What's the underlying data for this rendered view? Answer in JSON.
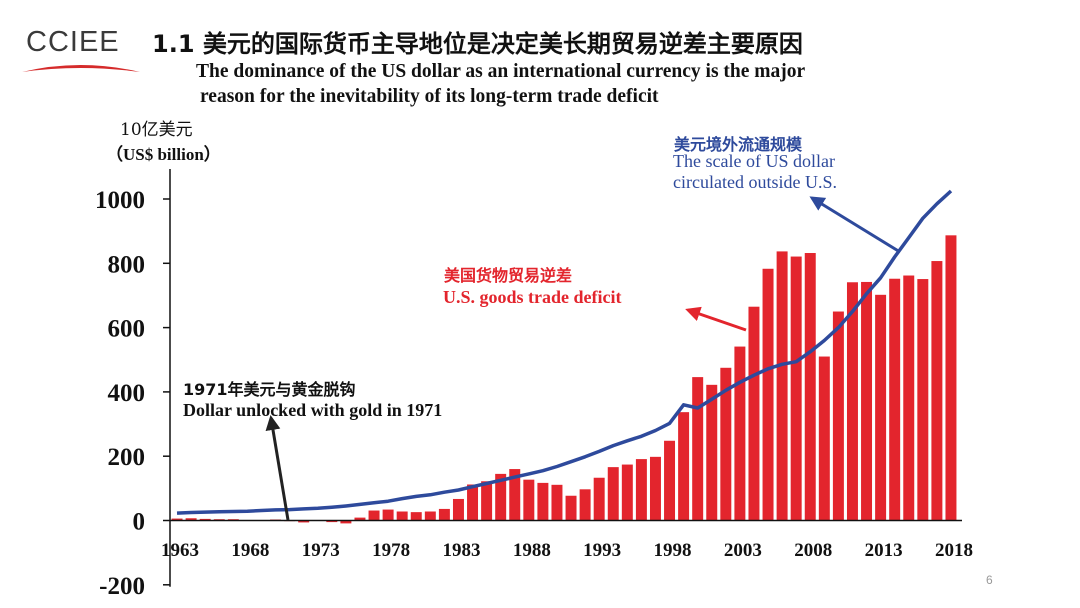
{
  "header": {
    "logo_text": "CCIEE",
    "title_zh": "1.1 美元的国际货币主导地位是决定美长期贸易逆差主要原因",
    "title_en_line1": "The dominance of the US dollar as an international currency is the major",
    "title_en_line2": "reason for the inevitability of its long-term trade deficit"
  },
  "colors": {
    "bar": "#e3252d",
    "line": "#2e4a9c",
    "zero_line": "#111111"
  },
  "page_number": "6",
  "chart_data": {
    "type": "bar",
    "ylabel_zh": "10亿美元",
    "ylabel_en": "（US$ billion）",
    "ylim": [
      -200,
      1000
    ],
    "yticks": [
      -200,
      0,
      200,
      400,
      600,
      800,
      1000
    ],
    "xticks": [
      1963,
      1968,
      1973,
      1978,
      1983,
      1988,
      1993,
      1998,
      2003,
      2008,
      2013,
      2018
    ],
    "years": [
      1963,
      1964,
      1965,
      1966,
      1967,
      1968,
      1969,
      1970,
      1971,
      1972,
      1973,
      1974,
      1975,
      1976,
      1977,
      1978,
      1979,
      1980,
      1981,
      1982,
      1983,
      1984,
      1985,
      1986,
      1987,
      1988,
      1989,
      1990,
      1991,
      1992,
      1993,
      1994,
      1995,
      1996,
      1997,
      1998,
      1999,
      2000,
      2001,
      2002,
      2003,
      2004,
      2005,
      2006,
      2007,
      2008,
      2009,
      2010,
      2011,
      2012,
      2013,
      2014,
      2015,
      2016,
      2017,
      2018
    ],
    "series": [
      {
        "name_zh": "美国货物贸易逆差",
        "name_en": "U.S. goods trade deficit",
        "type": "bar",
        "values": [
          6,
          7,
          5,
          4,
          4,
          1,
          1,
          3,
          -2,
          -6,
          1,
          -5,
          -9,
          9,
          31,
          34,
          28,
          26,
          28,
          36,
          67,
          112,
          122,
          145,
          160,
          127,
          117,
          111,
          77,
          97,
          133,
          166,
          174,
          191,
          198,
          248,
          337,
          446,
          422,
          475,
          541,
          665,
          783,
          837,
          821,
          832,
          510,
          650,
          741,
          742,
          702,
          752,
          762,
          751,
          807,
          887
        ]
      },
      {
        "name_zh": "美元境外流通规模",
        "name_en_line1": "The scale of US dollar",
        "name_en_line2": "circulated outside U.S.",
        "type": "line",
        "values": [
          23,
          25,
          26,
          27,
          28,
          29,
          31,
          33,
          34,
          36,
          38,
          41,
          45,
          50,
          55,
          60,
          68,
          75,
          80,
          88,
          95,
          105,
          115,
          125,
          135,
          145,
          155,
          168,
          183,
          198,
          215,
          233,
          248,
          262,
          280,
          302,
          360,
          350,
          377,
          405,
          430,
          452,
          472,
          486,
          494,
          525,
          560,
          600,
          650,
          705,
          755,
          820,
          880,
          940,
          985,
          1025
        ]
      }
    ],
    "annotation_1971_zh": "1971年美元与黄金脱钩",
    "annotation_1971_en": "Dollar unlocked with gold in 1971"
  }
}
